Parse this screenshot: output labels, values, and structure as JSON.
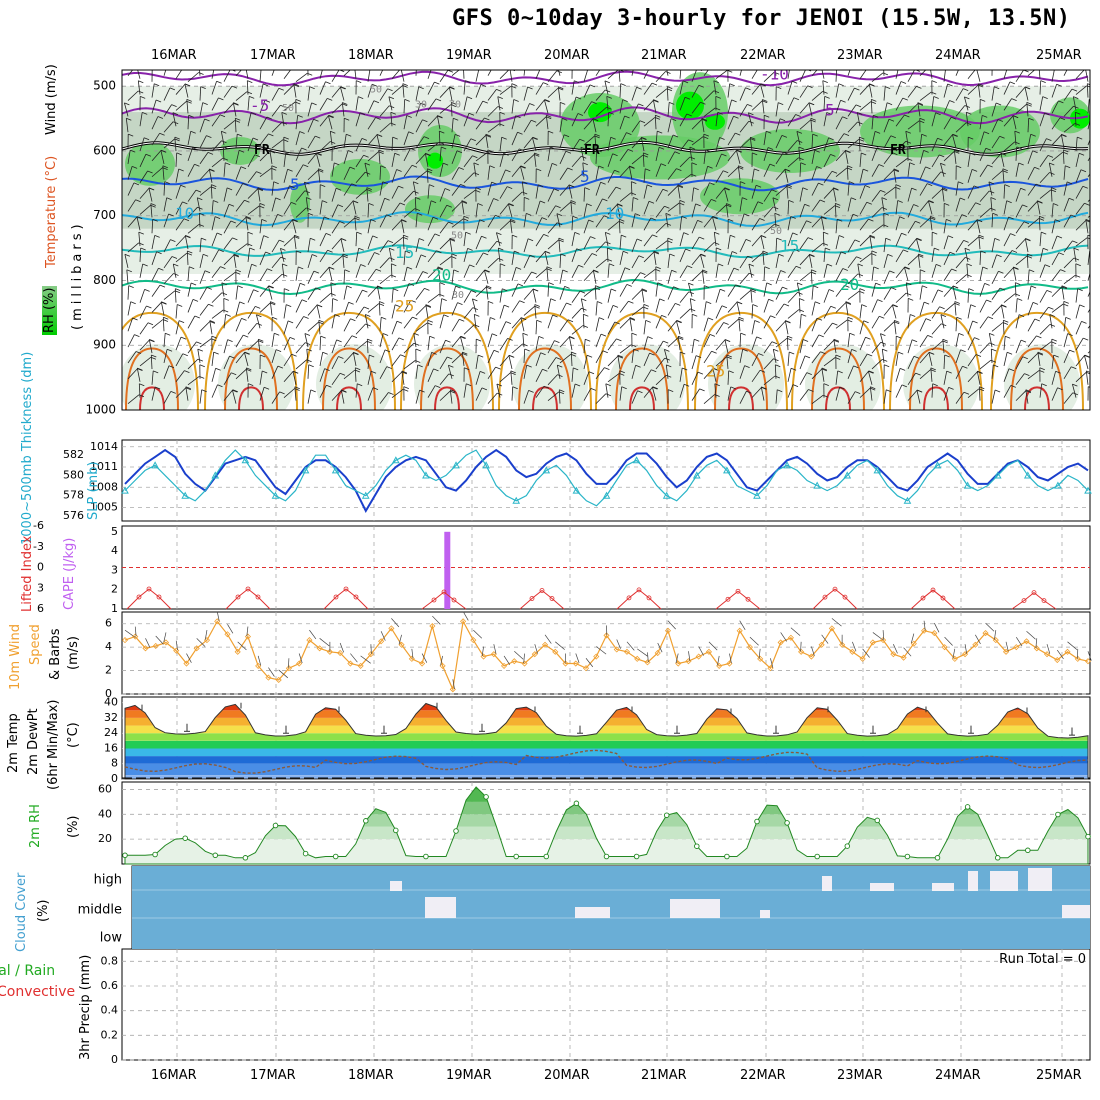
{
  "title": "GFS 0~10day 3-hourly for JENOI (15.5W, 13.5N)",
  "dates": [
    "16MAR",
    "17MAR",
    "18MAR",
    "19MAR",
    "20MAR",
    "21MAR",
    "22MAR",
    "23MAR",
    "24MAR",
    "25MAR"
  ],
  "panels": {
    "upper": {
      "ylabel_wind": "Wind (m/s)",
      "ylabel_temp": "Temperature (°C)",
      "ylabel_rh": "RH (%)",
      "ylabel_p": "(millibars)",
      "pressure_ticks": [
        "500",
        "600",
        "700",
        "800",
        "900",
        "1000"
      ],
      "freezing_label": "FR",
      "temp_contour_labels": [
        "-10",
        "-5",
        "5",
        "10",
        "15",
        "20",
        "25"
      ],
      "rh_contour_labels": [
        "30",
        "50",
        "70"
      ]
    },
    "pressure": {
      "ylabel_thick": "1000~500mb Thickness (dm)",
      "ylabel_slp": "SLP (mb)",
      "thick_ticks": [
        "582",
        "580",
        "578",
        "576"
      ],
      "slp_ticks": [
        "1014",
        "1011",
        "1008",
        "1005"
      ]
    },
    "cape": {
      "ylabel_li": "Lifted Index",
      "ylabel_cape": "CAPE (J/kg)",
      "li_ticks": [
        "-6",
        "-3",
        "0",
        "3",
        "6"
      ],
      "cape_ticks": [
        "5",
        "4",
        "3",
        "2",
        "1"
      ]
    },
    "wind10": {
      "ylabel1": "10m Wind",
      "ylabel2": "Speed",
      "ylabel3": "& Barbs",
      "ylabel4": "(m/s)",
      "ticks": [
        "6",
        "4",
        "2",
        "0"
      ]
    },
    "temp2m": {
      "ylabel1": "2m Temp",
      "ylabel2": "2m DewPt",
      "ylabel3": "(6hr Min/Max)",
      "ylabel4": "(°C)",
      "ticks": [
        "40",
        "32",
        "24",
        "16",
        "8",
        "0"
      ]
    },
    "rh2m": {
      "ylabel1": "2m RH",
      "ylabel2": "(%)",
      "ticks": [
        "60",
        "40",
        "20"
      ]
    },
    "cloud": {
      "ylabel1": "Cloud Cover",
      "ylabel2": "(%)",
      "levels": [
        "high",
        "middle",
        "low"
      ]
    },
    "precip": {
      "ylabel1": "Total / Rain",
      "ylabel2": "Convective",
      "ylabel3": "3hr Precip (mm)",
      "ticks": [
        "0.8",
        "0.6",
        "0.4",
        "0.2",
        "0"
      ],
      "run_total": "Run Total = 0"
    }
  },
  "colors": {
    "slp": "#1a3fcc",
    "thickness": "#2ab5c8",
    "wind10": "#f0a030",
    "li": "#e03030",
    "cape": "#c060f0",
    "rh_high": "#00dd00",
    "rh_mid": "#66cc66",
    "rh_low": "#c8d8c8",
    "cloud": "#6aaed6",
    "dewpt": "#8a5a3a",
    "tmp_freeze": "#8ab4f0",
    "fr": "#000000"
  },
  "chart_data": [
    {
      "type": "line",
      "title": "1000~500mb Thickness (dm) / SLP (mb)",
      "x": "3-hourly steps, 16MAR to 25MAR",
      "series": [
        {
          "name": "SLP (mb)",
          "values": [
            1008.5,
            1010,
            1011.5,
            1012.5,
            1013.5,
            1012.5,
            1010,
            1008.5,
            1007.5,
            1009.5,
            1011.5,
            1012,
            1012.5,
            1012,
            1010,
            1008,
            1007,
            1009,
            1011,
            1012,
            1012,
            1011,
            1009.5,
            1007.5,
            1004.5,
            1007,
            1009.5,
            1011,
            1012,
            1012.5,
            1012,
            1010,
            1008,
            1007.5,
            1009,
            1011,
            1012.5,
            1013.5,
            1012.5,
            1010.5,
            1009.5,
            1010,
            1011.5,
            1012.5,
            1013,
            1012,
            1010,
            1008.5,
            1008.5,
            1010,
            1012,
            1013,
            1013,
            1011.5,
            1009.5,
            1008,
            1009,
            1011,
            1012.5,
            1013,
            1012,
            1010,
            1008,
            1007.5,
            1009,
            1010.5,
            1012,
            1012.5,
            1011.5,
            1010,
            1009,
            1009.5,
            1011,
            1012,
            1012,
            1011,
            1009.5,
            1008,
            1007.5,
            1009,
            1011,
            1012,
            1013,
            1012,
            1010,
            1008.5,
            1008.5,
            1010,
            1011.5,
            1012,
            1011,
            1009.5,
            1009,
            1010,
            1011,
            1011.5,
            1010.5
          ]
        },
        {
          "name": "Thickness (dm)",
          "values": [
            578.5,
            579.5,
            580.5,
            581,
            580,
            579,
            578,
            577.5,
            578.5,
            580,
            581.5,
            582.5,
            581.5,
            580,
            579,
            578,
            577.5,
            578.5,
            580.5,
            582,
            582,
            580.5,
            579,
            578.5,
            578,
            579,
            580.5,
            581.5,
            582,
            581.5,
            580,
            579.5,
            580,
            581,
            582,
            582.5,
            581,
            579,
            578,
            577.5,
            578,
            579.5,
            580.5,
            581,
            580,
            578.5,
            577.5,
            577,
            578,
            579.5,
            581,
            581.5,
            580.5,
            579,
            578,
            577.5,
            578.5,
            580,
            581,
            581.5,
            580.5,
            579,
            578.5,
            578,
            579,
            580.5,
            581,
            580.5,
            579.5,
            579,
            578.5,
            579,
            580,
            581,
            581.5,
            580.5,
            579,
            578,
            577.5,
            578.5,
            580,
            581,
            581.5,
            580.5,
            579,
            578.5,
            579,
            580,
            581,
            581.5,
            580,
            579,
            578.5,
            579,
            580,
            579.5,
            578.5
          ]
        }
      ],
      "y_left_range": [
        575.5,
        583.5
      ],
      "y_right_range": [
        1003,
        1015
      ]
    },
    {
      "type": "bar",
      "title": "Lifted Index / CAPE (J/kg)",
      "cape_bar": {
        "date_index": 3,
        "fraction_of_day": 0.75,
        "value": 5
      },
      "li_peaks": [
        3.0,
        3.0,
        3.0,
        5.0,
        4.0,
        3.6,
        4.5,
        3.1,
        3.7,
        5.4
      ],
      "y_left_range": [
        -6,
        6
      ],
      "y_right_range": [
        1,
        5.3
      ]
    },
    {
      "type": "line",
      "title": "10m Wind Speed & Barbs (m/s)",
      "series": [
        {
          "name": "Speed",
          "values": [
            4.6,
            4.9,
            3.9,
            4.1,
            4.4,
            3.7,
            2.6,
            3.9,
            4.6,
            6.2,
            5.1,
            3.6,
            4.9,
            2.4,
            1.4,
            1.2,
            2.2,
            2.6,
            4.6,
            3.9,
            3.6,
            3.5,
            2.6,
            2.4,
            3.4,
            4.5,
            5.6,
            4.2,
            3.0,
            2.6,
            5.8,
            2.4,
            0.4,
            6.2,
            4.6,
            3.2,
            3.4,
            2.4,
            2.8,
            2.6,
            3.4,
            4.2,
            3.6,
            2.6,
            2.6,
            2.2,
            3.2,
            5.0,
            3.8,
            3.6,
            3.0,
            2.7,
            3.5,
            5.4,
            2.6,
            2.8,
            3.2,
            3.6,
            2.4,
            2.6,
            5.4,
            4.0,
            3.0,
            2.2,
            4.4,
            4.8,
            3.6,
            3.2,
            4.2,
            5.6,
            4.2,
            3.6,
            3.0,
            4.4,
            4.6,
            3.4,
            3.1,
            4.3,
            5.4,
            5.2,
            4.0,
            3.0,
            3.4,
            4.2,
            5.2,
            4.6,
            3.6,
            4.0,
            4.5,
            3.9,
            3.4,
            2.9,
            3.6,
            3.0,
            2.8
          ]
        }
      ],
      "y_range": [
        0,
        7
      ]
    },
    {
      "type": "area",
      "title": "2m Temp / 2m DewPt (°C)",
      "temp_max": [
        39,
        40,
        38,
        40,
        38,
        38,
        37,
        38,
        38,
        37.5
      ],
      "temp_min": [
        25,
        24,
        24,
        25,
        24,
        24,
        24,
        24,
        24,
        23
      ],
      "dewpoint": [
        6,
        5,
        10,
        7,
        13,
        8,
        12,
        6,
        10,
        8
      ],
      "y_range": [
        0,
        43
      ]
    },
    {
      "type": "area",
      "title": "2m RH (%)",
      "peaks": [
        21,
        32,
        45,
        62,
        49,
        42,
        49,
        38,
        46,
        44
      ],
      "troughs": [
        7,
        5,
        6,
        6,
        6,
        6,
        6,
        6,
        5,
        11
      ],
      "y_range": [
        0,
        66
      ]
    },
    {
      "type": "bar",
      "title": "Cloud Cover (%)",
      "layers": [
        "high",
        "middle",
        "low"
      ],
      "y_range": [
        0,
        100
      ]
    },
    {
      "type": "bar",
      "title": "3hr Precip (mm)",
      "values": [],
      "y_range": [
        0,
        0.9
      ],
      "run_total": 0
    }
  ]
}
